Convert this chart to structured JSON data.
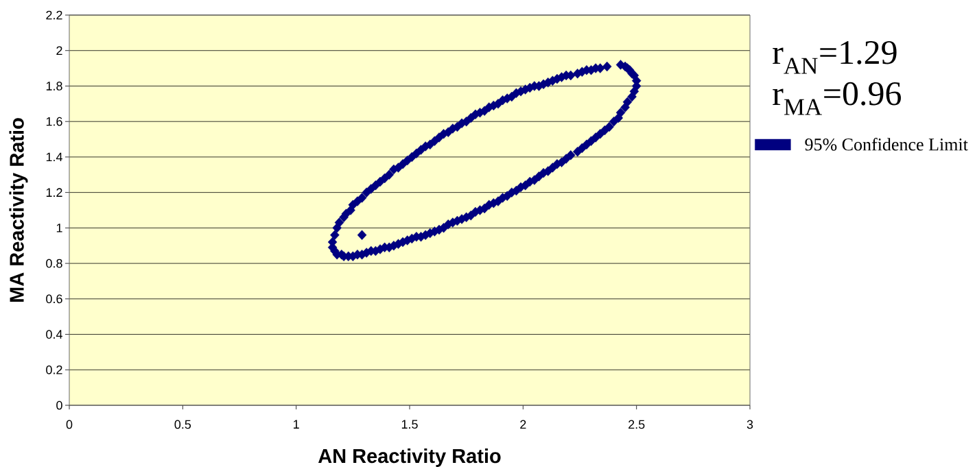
{
  "chart_data": {
    "type": "scatter",
    "xlabel": "AN Reactivity Ratio",
    "ylabel": "MA Reactivity Ratio",
    "annotations": [
      "r$_{AN}$=1.29",
      "r$_{MA}$=0.96"
    ],
    "xlim": [
      0,
      3
    ],
    "ylim": [
      0,
      2.2
    ],
    "xticks": [
      0,
      0.5,
      1,
      1.5,
      2,
      2.5,
      3
    ],
    "yticks": [
      0,
      0.2,
      0.4,
      0.6,
      0.8,
      1,
      1.2,
      1.4,
      1.6,
      1.8,
      2,
      2.2
    ],
    "grid": "y",
    "legend": "right",
    "marker": "diamond",
    "series": [
      {
        "name": "95% Confidence Limit",
        "color": "#000080",
        "x": [
          2.37,
          2.34,
          2.32,
          2.3,
          2.28,
          2.26,
          2.24,
          2.21,
          2.19,
          2.17,
          2.15,
          2.13,
          2.11,
          2.09,
          2.07,
          2.05,
          2.03,
          2.01,
          1.99,
          1.97,
          1.95,
          1.93,
          1.91,
          1.89,
          1.87,
          1.85,
          1.83,
          1.81,
          1.79,
          1.77,
          1.75,
          1.73,
          1.71,
          1.69,
          1.67,
          1.65,
          1.63,
          1.61,
          1.59,
          1.57,
          1.55,
          1.53,
          1.51,
          1.49,
          1.47,
          1.45,
          1.43,
          1.41,
          1.39,
          1.37,
          1.35,
          1.33,
          1.31,
          1.29,
          1.27,
          1.25,
          1.24,
          1.22,
          1.21,
          1.19,
          1.18,
          1.17,
          1.16,
          1.16,
          1.17,
          1.18,
          1.2,
          1.21,
          1.23,
          1.25,
          1.27,
          1.29,
          1.31,
          1.33,
          1.35,
          1.37,
          1.39,
          1.41,
          1.43,
          1.45,
          1.47,
          1.49,
          1.51,
          1.53,
          1.55,
          1.57,
          1.59,
          1.61,
          1.63,
          1.65,
          1.67,
          1.69,
          1.71,
          1.73,
          1.75,
          1.77,
          1.79,
          1.81,
          1.83,
          1.85,
          1.87,
          1.89,
          1.91,
          1.93,
          1.95,
          1.97,
          1.99,
          2.01,
          2.03,
          2.05,
          2.07,
          2.09,
          2.11,
          2.13,
          2.15,
          2.17,
          2.19,
          2.21,
          2.24,
          2.26,
          2.28,
          2.3,
          2.32,
          2.34,
          2.36,
          2.38,
          2.4,
          2.42,
          2.43,
          2.45,
          2.46,
          2.48,
          2.49,
          2.5,
          2.5,
          2.49,
          2.48,
          2.47,
          2.46,
          2.45,
          2.43
        ],
        "values": [
          1.91,
          1.9,
          1.9,
          1.89,
          1.89,
          1.88,
          1.87,
          1.86,
          1.86,
          1.85,
          1.84,
          1.83,
          1.82,
          1.81,
          1.8,
          1.8,
          1.79,
          1.78,
          1.77,
          1.76,
          1.74,
          1.73,
          1.72,
          1.7,
          1.69,
          1.68,
          1.66,
          1.65,
          1.64,
          1.62,
          1.6,
          1.59,
          1.57,
          1.56,
          1.54,
          1.53,
          1.51,
          1.49,
          1.47,
          1.46,
          1.44,
          1.42,
          1.4,
          1.38,
          1.36,
          1.34,
          1.33,
          1.3,
          1.28,
          1.26,
          1.24,
          1.22,
          1.2,
          1.17,
          1.15,
          1.13,
          1.1,
          1.08,
          1.06,
          1.03,
          1.0,
          0.96,
          0.92,
          0.89,
          0.87,
          0.85,
          0.85,
          0.84,
          0.84,
          0.84,
          0.85,
          0.85,
          0.86,
          0.87,
          0.87,
          0.88,
          0.89,
          0.89,
          0.9,
          0.91,
          0.92,
          0.93,
          0.94,
          0.95,
          0.95,
          0.96,
          0.97,
          0.98,
          0.99,
          1.0,
          1.02,
          1.03,
          1.04,
          1.05,
          1.06,
          1.07,
          1.09,
          1.1,
          1.11,
          1.13,
          1.14,
          1.15,
          1.17,
          1.18,
          1.2,
          1.21,
          1.23,
          1.24,
          1.26,
          1.27,
          1.29,
          1.31,
          1.32,
          1.34,
          1.36,
          1.37,
          1.39,
          1.41,
          1.43,
          1.45,
          1.47,
          1.49,
          1.51,
          1.53,
          1.55,
          1.57,
          1.6,
          1.62,
          1.65,
          1.68,
          1.71,
          1.74,
          1.77,
          1.8,
          1.83,
          1.86,
          1.87,
          1.89,
          1.9,
          1.91,
          1.92
        ]
      },
      {
        "color": "#000080",
        "x": [
          1.29
        ],
        "values": [
          0.96
        ]
      }
    ]
  }
}
